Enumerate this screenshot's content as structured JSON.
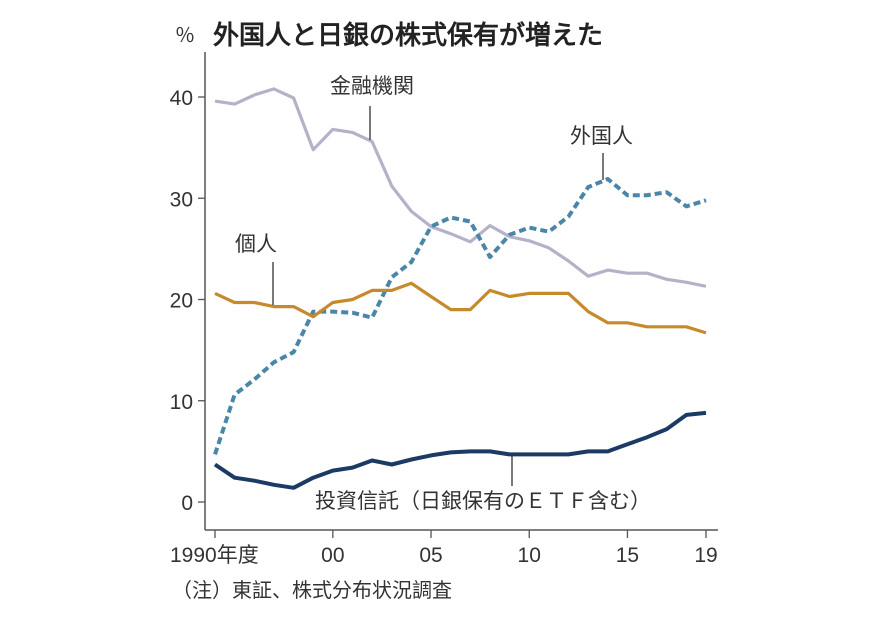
{
  "chart_data": {
    "type": "line",
    "title": "外国人と日銀の株式保有が増えた",
    "ylabel": "％",
    "xlabel": "",
    "ylim": [
      0,
      40
    ],
    "yticks": [
      0,
      10,
      20,
      30,
      40
    ],
    "x_points": 26,
    "xticks": [
      {
        "index": 0,
        "label": "1990年度"
      },
      {
        "index": 6,
        "label": "00"
      },
      {
        "index": 11,
        "label": "05"
      },
      {
        "index": 16,
        "label": "10"
      },
      {
        "index": 21,
        "label": "15"
      },
      {
        "index": 25,
        "label": "19"
      }
    ],
    "grid": false,
    "series": [
      {
        "name": "金融機関",
        "color": "#b4b2c9",
        "style": "solid",
        "values": [
          39.6,
          39.3,
          40.2,
          40.8,
          39.9,
          34.8,
          36.8,
          36.5,
          35.6,
          31.2,
          28.7,
          27.2,
          26.5,
          25.7,
          27.3,
          26.2,
          25.8,
          25.1,
          23.8,
          22.3,
          22.9,
          22.6,
          22.6,
          22.0,
          21.7,
          21.3
        ]
      },
      {
        "name": "外国人",
        "color": "#4a86a8",
        "style": "dashed",
        "values": [
          4.7,
          10.6,
          12.1,
          13.8,
          14.8,
          18.8,
          18.8,
          18.7,
          18.2,
          22.2,
          23.7,
          27.2,
          28.1,
          27.7,
          24.2,
          26.4,
          27.1,
          26.7,
          28.2,
          31.1,
          31.9,
          30.3,
          30.3,
          30.6,
          29.2,
          29.8
        ]
      },
      {
        "name": "個人",
        "color": "#c68a2c",
        "style": "solid",
        "values": [
          20.6,
          19.7,
          19.7,
          19.3,
          19.3,
          18.3,
          19.7,
          20.0,
          20.9,
          20.9,
          21.6,
          20.3,
          19.0,
          19.0,
          20.9,
          20.3,
          20.6,
          20.6,
          20.6,
          18.8,
          17.7,
          17.7,
          17.3,
          17.3,
          17.3,
          16.7
        ]
      },
      {
        "name": "投資信託（日銀保有のＥＴＦ含む）",
        "color": "#1b3a64",
        "style": "solid",
        "values": [
          3.7,
          2.4,
          2.1,
          1.7,
          1.4,
          2.4,
          3.1,
          3.4,
          4.1,
          3.7,
          4.2,
          4.6,
          4.9,
          5.0,
          5.0,
          4.7,
          4.7,
          4.7,
          4.7,
          5.0,
          5.0,
          5.7,
          6.4,
          7.2,
          8.6,
          8.8
        ]
      }
    ],
    "note": "（注）東証、株式分布状況調査"
  }
}
